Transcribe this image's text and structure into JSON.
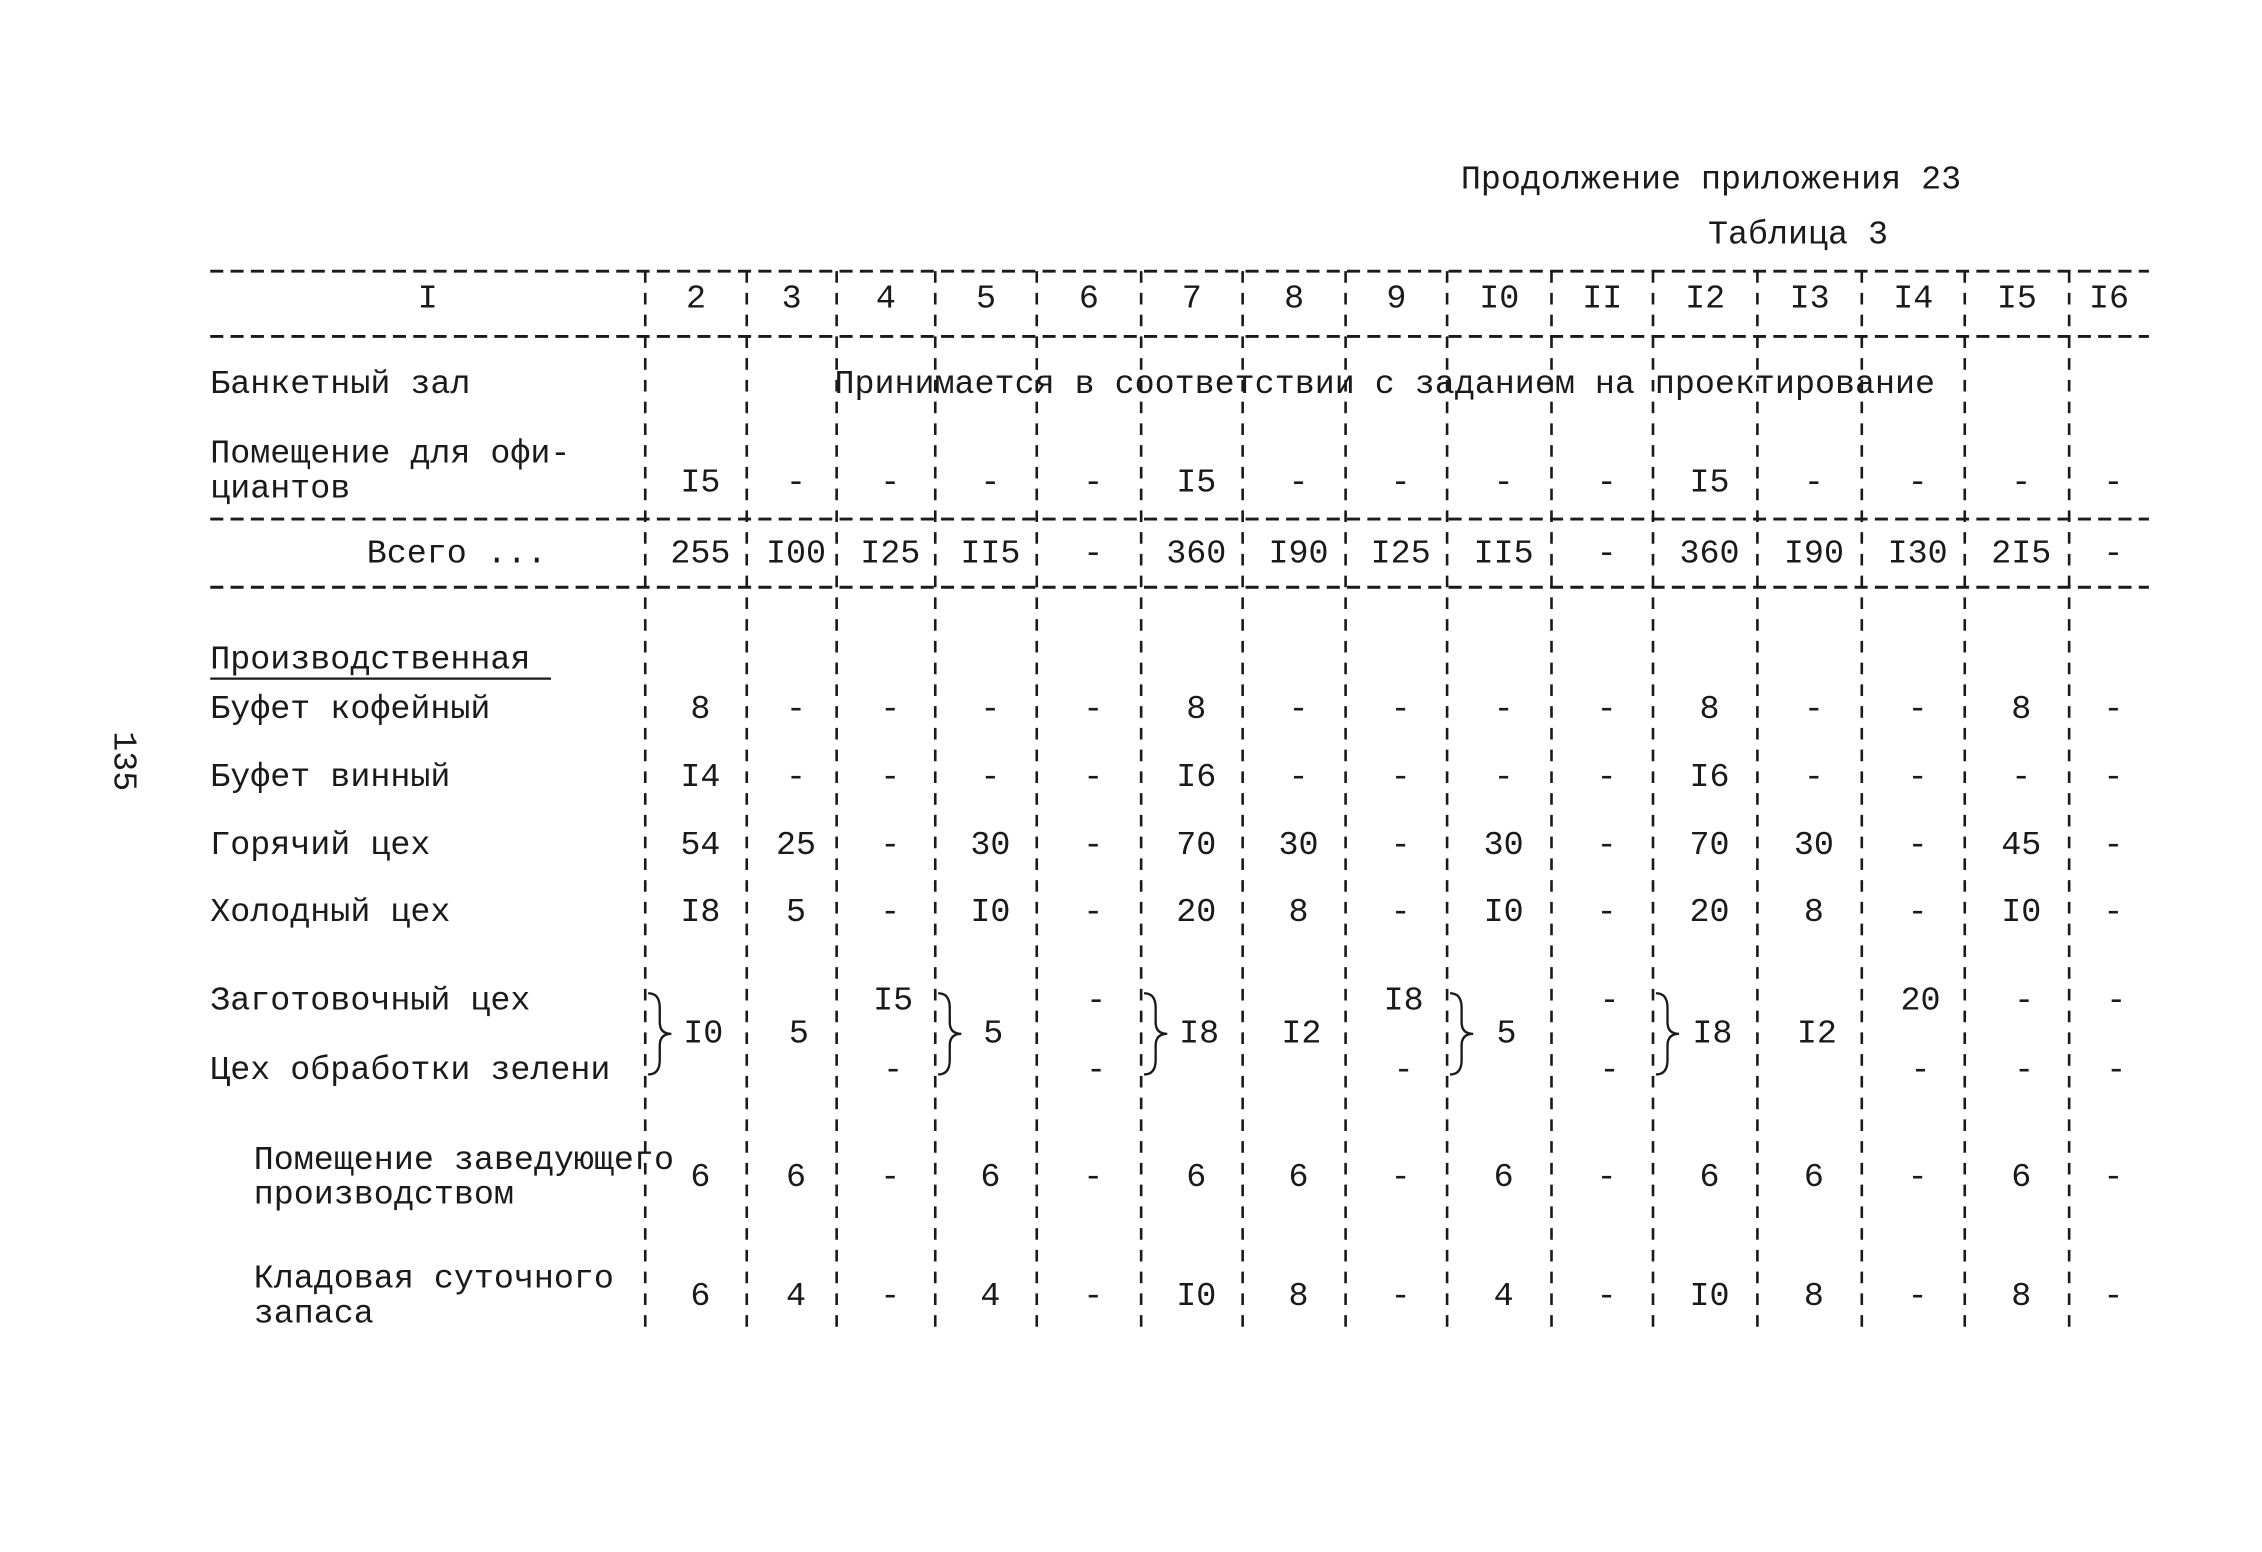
{
  "page_number": "135",
  "header": {
    "continuation": "Продолжение приложения 23",
    "table_label": "Таблица 3"
  },
  "table": {
    "columns": [
      "I",
      "2",
      "3",
      "4",
      "5",
      "6",
      "7",
      "8",
      "9",
      "I0",
      "II",
      "I2",
      "I3",
      "I4",
      "I5",
      "I6"
    ],
    "rows": [
      {
        "label": [
          "Банкетный зал"
        ],
        "note": "Принимается в соответствии с заданием на проектирование"
      },
      {
        "label": [
          "Помещение для офи-",
          "циантов"
        ],
        "cells": [
          "I5",
          "-",
          "-",
          "-",
          "-",
          "I5",
          "-",
          "-",
          "-",
          "-",
          "I5",
          "-",
          "-",
          "-",
          "-"
        ]
      },
      {
        "label": [
          "Всего ..."
        ],
        "cells": [
          "255",
          "I00",
          "I25",
          "II5",
          "-",
          "360",
          "I90",
          "I25",
          "II5",
          "-",
          "360",
          "I90",
          "I30",
          "2I5",
          "-"
        ]
      },
      {
        "heading": "Производственная"
      },
      {
        "label": [
          "Буфет кофейный"
        ],
        "cells": [
          "8",
          "-",
          "-",
          "-",
          "-",
          "8",
          "-",
          "-",
          "-",
          "-",
          "8",
          "-",
          "-",
          "8",
          "-"
        ]
      },
      {
        "label": [
          "Буфет винный"
        ],
        "cells": [
          "I4",
          "-",
          "-",
          "-",
          "-",
          "I6",
          "-",
          "-",
          "-",
          "-",
          "I6",
          "-",
          "-",
          "-",
          "-"
        ]
      },
      {
        "label": [
          "Горячий цех"
        ],
        "cells": [
          "54",
          "25",
          "-",
          "30",
          "-",
          "70",
          "30",
          "-",
          "30",
          "-",
          "70",
          "30",
          "-",
          "45",
          "-"
        ]
      },
      {
        "label": [
          "Холодный цех"
        ],
        "cells": [
          "I8",
          "5",
          "-",
          "I0",
          "-",
          "20",
          "8",
          "-",
          "I0",
          "-",
          "20",
          "8",
          "-",
          "I0",
          "-"
        ]
      },
      {
        "labels": [
          "Заготовочный цех",
          "Цех обработки зелени"
        ],
        "cells": [
          "I0",
          "5",
          [
            "I5",
            "-"
          ],
          "5",
          [
            "-",
            "-"
          ],
          "I8",
          "I2",
          [
            "I8",
            "-"
          ],
          "5",
          [
            "-",
            "-"
          ],
          "I8",
          "I2",
          [
            "20",
            "-"
          ],
          [
            "-",
            "-"
          ],
          [
            "-",
            "-"
          ]
        ]
      },
      {
        "label": [
          "Помещение заведующего",
          "производством"
        ],
        "cells": [
          "6",
          "6",
          "-",
          "6",
          "-",
          "6",
          "6",
          "-",
          "6",
          "-",
          "6",
          "6",
          "-",
          "6",
          "-"
        ]
      },
      {
        "label": [
          "Кладовая суточного",
          "запаса"
        ],
        "cells": [
          "6",
          "4",
          "-",
          "4",
          "-",
          "I0",
          "8",
          "-",
          "4",
          "-",
          "I0",
          "8",
          "-",
          "8",
          "-"
        ]
      }
    ]
  }
}
